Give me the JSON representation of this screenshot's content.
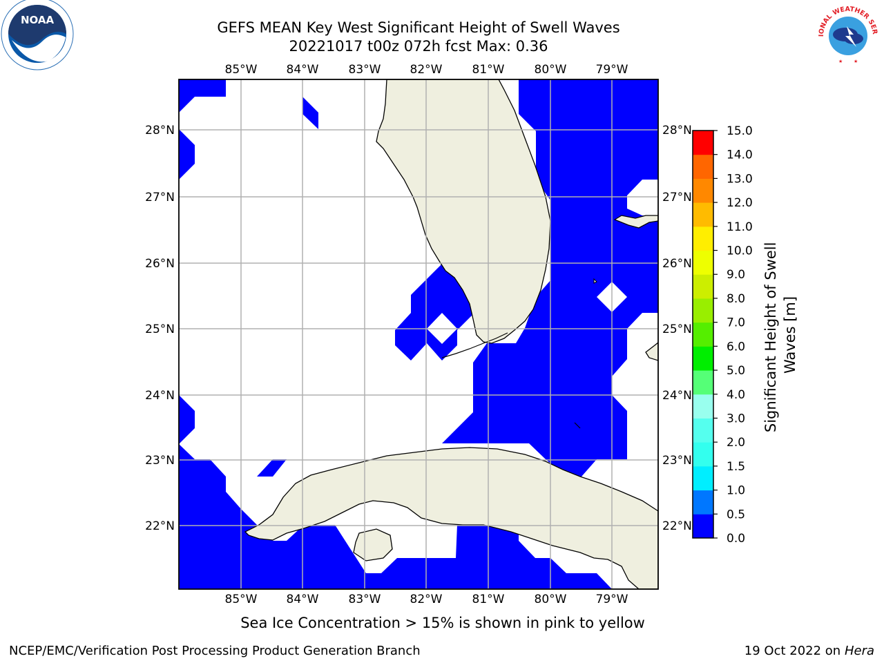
{
  "title_line1": "GEFS MEAN Key West Significant Height of Swell Waves",
  "title_line2": "20221017 t00z 072h fcst   Max: 0.36",
  "map": {
    "lon_labels": [
      "85°W",
      "84°W",
      "83°W",
      "82°W",
      "81°W",
      "80°W",
      "79°W"
    ],
    "lat_labels": [
      "28°N",
      "27°N",
      "26°N",
      "25°N",
      "24°N",
      "23°N",
      "22°N"
    ],
    "land_color": "#efefdf",
    "swell_color": "#0000ff"
  },
  "colorbar": {
    "label": "Significant Height of Swell Waves [m]",
    "label_line1": "Significant Height of Swell",
    "label_line2": "Waves [m]",
    "ticks": [
      "0.0",
      "0.5",
      "1.0",
      "1.5",
      "2.0",
      "3.0",
      "4.0",
      "5.0",
      "6.0",
      "7.0",
      "8.0",
      "9.0",
      "10.0",
      "11.0",
      "12.0",
      "13.0",
      "14.0",
      "15.0"
    ],
    "colors": [
      "#0000ff",
      "#0077ff",
      "#00eeff",
      "#33ffee",
      "#55ffee",
      "#99ffee",
      "#55ff77",
      "#00ee00",
      "#55ee00",
      "#99ee00",
      "#ccee00",
      "#eeff00",
      "#ffee00",
      "#ffbb00",
      "#ff8800",
      "#ff6600",
      "#ff3300",
      "#ff0000"
    ]
  },
  "footer": {
    "note": "Sea Ice Concentration > 15% is shown in pink to yellow",
    "left": "NCEP/EMC/Verification Post Processing Product Generation Branch",
    "right_date": "19 Oct 2022 on ",
    "right_host": "Hera"
  },
  "logos": {
    "noaa": "NOAA",
    "nws": "NATIONAL WEATHER SERVICE"
  }
}
